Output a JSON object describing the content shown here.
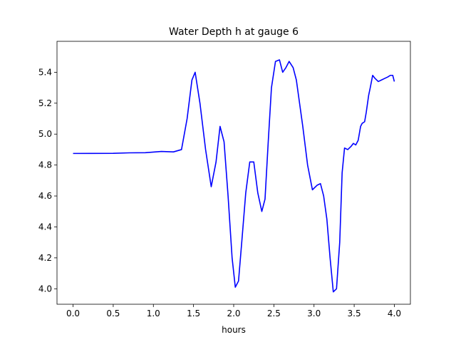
{
  "chart_data": {
    "type": "line",
    "title": "Water Depth h at gauge 6",
    "xlabel": "hours",
    "ylabel": "",
    "xlim": [
      -0.2,
      4.2
    ],
    "ylim": [
      3.9,
      5.6
    ],
    "xticks": [
      0.0,
      0.5,
      1.0,
      1.5,
      2.0,
      2.5,
      3.0,
      3.5,
      4.0
    ],
    "xtick_labels": [
      "0.0",
      "0.5",
      "1.0",
      "1.5",
      "2.0",
      "2.5",
      "3.0",
      "3.5",
      "4.0"
    ],
    "yticks": [
      4.0,
      4.2,
      4.4,
      4.6,
      4.8,
      5.0,
      5.2,
      5.4
    ],
    "ytick_labels": [
      "4.0",
      "4.2",
      "4.4",
      "4.6",
      "4.8",
      "5.0",
      "5.2",
      "5.4"
    ],
    "grid": false,
    "series": [
      {
        "color": "#0000ff",
        "x": [
          0.0,
          0.5,
          0.7,
          0.9,
          1.1,
          1.25,
          1.35,
          1.42,
          1.48,
          1.52,
          1.58,
          1.65,
          1.72,
          1.78,
          1.83,
          1.88,
          1.93,
          1.98,
          2.02,
          2.06,
          2.1,
          2.15,
          2.2,
          2.25,
          2.3,
          2.35,
          2.39,
          2.43,
          2.47,
          2.52,
          2.57,
          2.61,
          2.65,
          2.69,
          2.74,
          2.78,
          2.82,
          2.86,
          2.92,
          2.98,
          3.04,
          3.08,
          3.12,
          3.16,
          3.2,
          3.24,
          3.28,
          3.32,
          3.35,
          3.38,
          3.42,
          3.46,
          3.49,
          3.52,
          3.55,
          3.58,
          3.6,
          3.63,
          3.65,
          3.68,
          3.7,
          3.73,
          3.76,
          3.8,
          3.84,
          3.88,
          3.92,
          3.95,
          3.98,
          4.0
        ],
        "y": [
          4.875,
          4.876,
          4.879,
          4.88,
          4.888,
          4.885,
          4.9,
          5.1,
          5.35,
          5.4,
          5.2,
          4.9,
          4.66,
          4.82,
          5.05,
          4.95,
          4.6,
          4.2,
          4.01,
          4.05,
          4.3,
          4.62,
          4.82,
          4.82,
          4.62,
          4.5,
          4.58,
          4.95,
          5.3,
          5.47,
          5.48,
          5.4,
          5.43,
          5.47,
          5.43,
          5.35,
          5.2,
          5.05,
          4.8,
          4.64,
          4.67,
          4.68,
          4.6,
          4.45,
          4.2,
          3.98,
          4.0,
          4.3,
          4.75,
          4.91,
          4.9,
          4.92,
          4.94,
          4.93,
          4.96,
          5.05,
          5.07,
          5.08,
          5.14,
          5.25,
          5.3,
          5.38,
          5.36,
          5.34,
          5.35,
          5.36,
          5.37,
          5.38,
          5.38,
          5.34
        ]
      }
    ]
  }
}
